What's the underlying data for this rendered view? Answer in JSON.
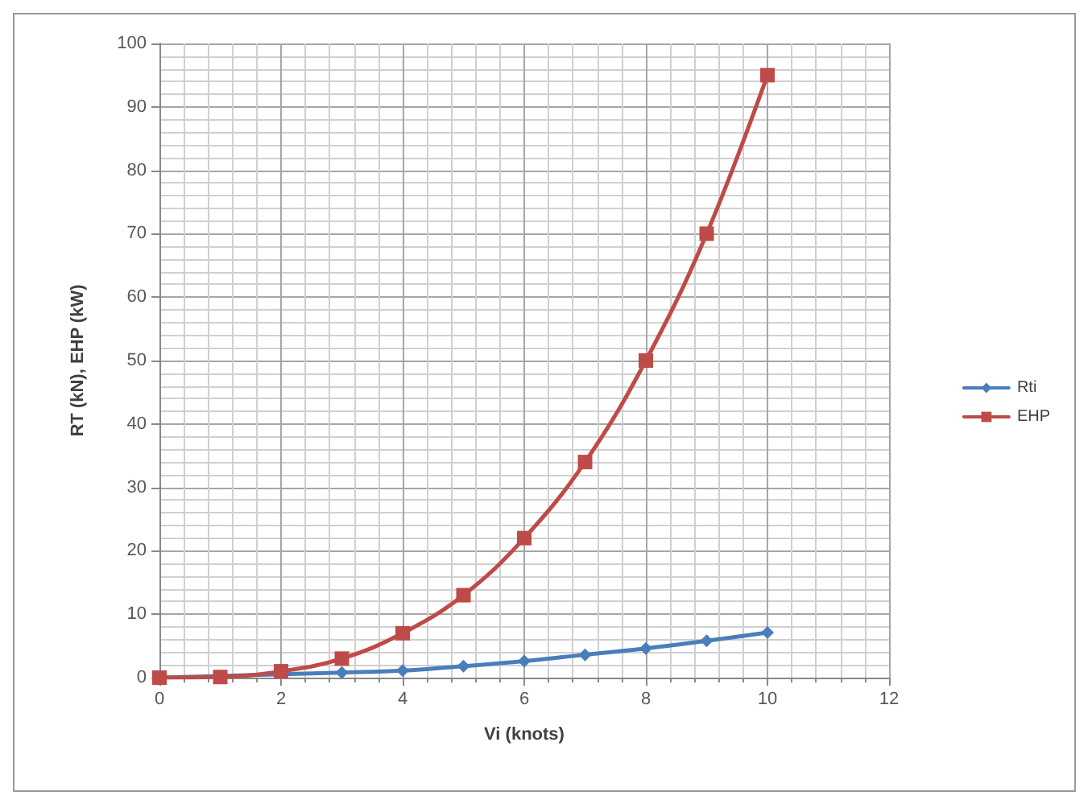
{
  "chart_data": {
    "type": "line",
    "xlabel": "Vi (knots)",
    "ylabel": "RT (kN), EHP (kW)",
    "x": [
      0,
      1,
      2,
      3,
      4,
      5,
      6,
      7,
      8,
      9,
      10
    ],
    "series": [
      {
        "name": "Rti",
        "color": "#4a7ebb",
        "marker": "diamond",
        "values": [
          0,
          null,
          null,
          0.8,
          1.1,
          1.8,
          2.6,
          3.6,
          4.6,
          5.8,
          7.1
        ]
      },
      {
        "name": "EHP",
        "color": "#be4b48",
        "marker": "square",
        "values": [
          0,
          0.1,
          1,
          3,
          7,
          13,
          22,
          34,
          50,
          70,
          95
        ]
      }
    ],
    "xlim": [
      0,
      12
    ],
    "xticks": [
      0,
      2,
      4,
      6,
      8,
      10,
      12
    ],
    "ylim": [
      0,
      100
    ],
    "yticks": [
      0,
      10,
      20,
      30,
      40,
      50,
      60,
      70,
      80,
      90,
      100
    ],
    "grid": true,
    "legend": "right",
    "line_style": "solid"
  }
}
